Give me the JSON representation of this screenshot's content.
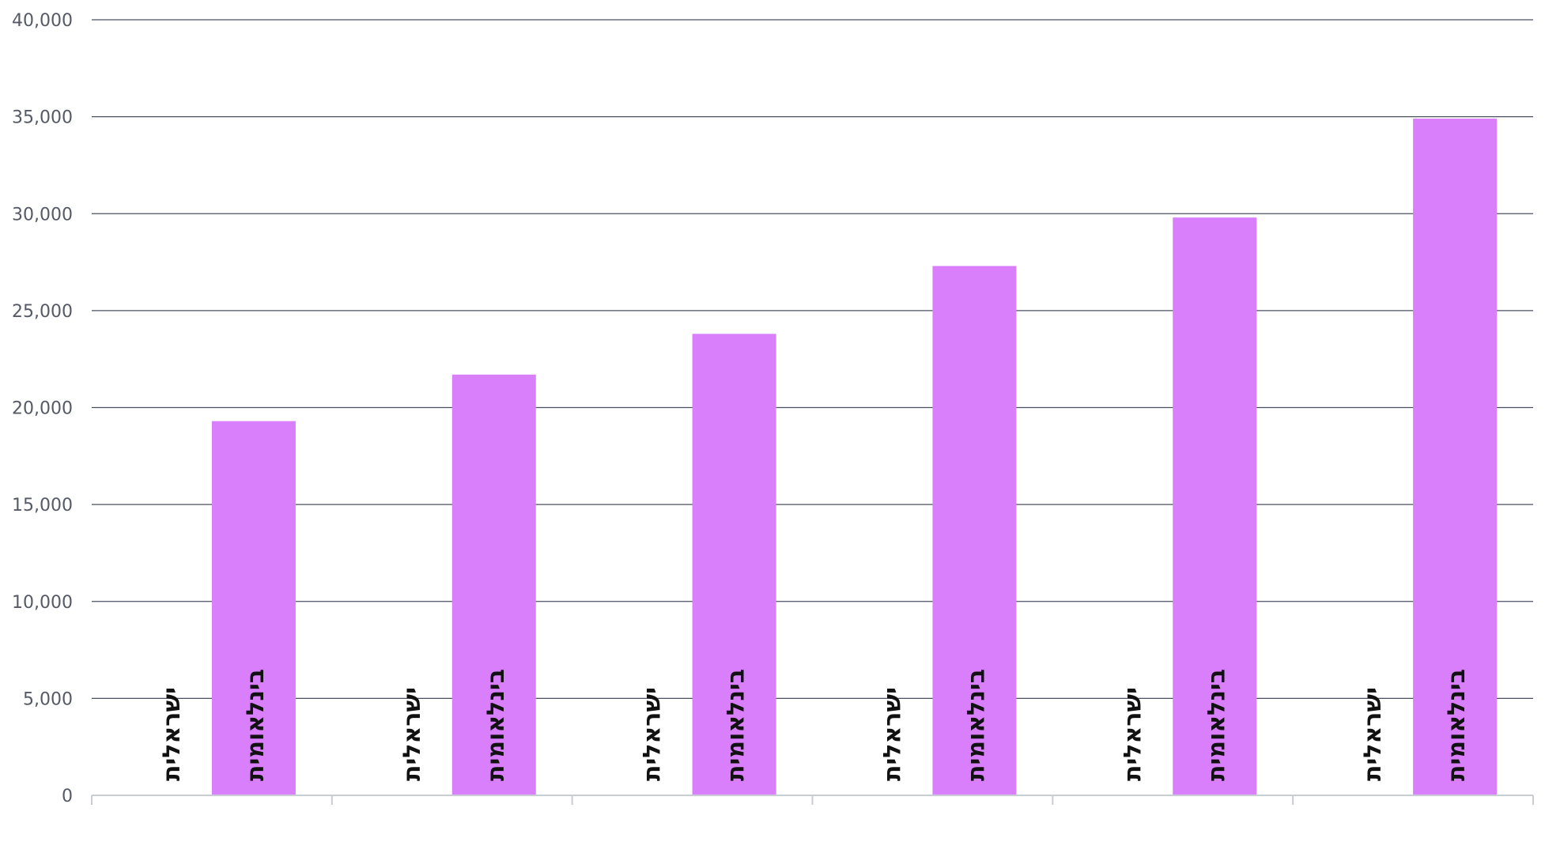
{
  "chart_data": {
    "type": "bar",
    "title": "",
    "xlabel": "",
    "ylabel": "",
    "ylim": [
      0,
      40000
    ],
    "yticks": [
      0,
      5000,
      10000,
      15000,
      20000,
      25000,
      30000,
      35000,
      40000
    ],
    "ytick_labels": [
      "0",
      "5,000",
      "10,000",
      "15,000",
      "20,000",
      "25,000",
      "30,000",
      "35,000",
      "40,000"
    ],
    "grid": true,
    "legend": "none",
    "category_count": 6,
    "series": [
      {
        "label": "ישראלית",
        "values": [
          0,
          0,
          0,
          0,
          0,
          0
        ],
        "color": "#ffffff"
      },
      {
        "label": "בינלאומית",
        "values": [
          19300,
          21700,
          23800,
          27300,
          29800,
          34900
        ],
        "color": "#d97ffc"
      }
    ]
  },
  "colors": {
    "grid": "#4a5060",
    "axis": "#c9ccd3",
    "tick_text": "#555a66",
    "label_text": "#111111"
  }
}
